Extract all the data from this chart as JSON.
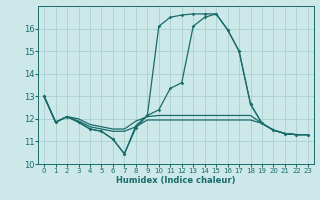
{
  "xlabel": "Humidex (Indice chaleur)",
  "xlim": [
    -0.5,
    23.5
  ],
  "ylim": [
    10,
    17
  ],
  "yticks": [
    10,
    11,
    12,
    13,
    14,
    15,
    16
  ],
  "xticks": [
    0,
    1,
    2,
    3,
    4,
    5,
    6,
    7,
    8,
    9,
    10,
    11,
    12,
    13,
    14,
    15,
    16,
    17,
    18,
    19,
    20,
    21,
    22,
    23
  ],
  "bg_color": "#cce8e8",
  "grid_color": "#aacfcf",
  "line_color": "#1a6b6b",
  "lines": [
    {
      "x": [
        0,
        1,
        2,
        3,
        4,
        5,
        6,
        7,
        8,
        9,
        10,
        11,
        12,
        13,
        14,
        15,
        16,
        17,
        18,
        19,
        20,
        21,
        22,
        23
      ],
      "y": [
        13,
        11.85,
        12.1,
        11.85,
        11.55,
        11.45,
        11.1,
        10.45,
        11.7,
        12.15,
        16.1,
        16.5,
        16.6,
        16.65,
        16.65,
        16.65,
        15.95,
        15.0,
        12.65,
        11.8,
        11.5,
        11.35,
        11.3,
        11.3
      ],
      "marker": true
    },
    {
      "x": [
        0,
        1,
        2,
        3,
        4,
        5,
        6,
        7,
        8,
        9,
        10,
        11,
        12,
        13,
        14,
        15,
        16,
        17,
        18,
        19,
        20,
        21,
        22,
        23
      ],
      "y": [
        13,
        11.85,
        12.1,
        12.0,
        11.75,
        11.65,
        11.55,
        11.55,
        11.9,
        12.1,
        12.15,
        12.15,
        12.15,
        12.15,
        12.15,
        12.15,
        12.15,
        12.15,
        12.15,
        11.8,
        11.5,
        11.35,
        11.3,
        11.3
      ],
      "marker": false
    },
    {
      "x": [
        0,
        1,
        2,
        3,
        4,
        5,
        6,
        7,
        8,
        9,
        10,
        11,
        12,
        13,
        14,
        15,
        16,
        17,
        18,
        19,
        20,
        21,
        22,
        23
      ],
      "y": [
        13,
        11.85,
        12.1,
        11.9,
        11.65,
        11.55,
        11.45,
        11.45,
        11.65,
        11.95,
        11.95,
        11.95,
        11.95,
        11.95,
        11.95,
        11.95,
        11.95,
        11.95,
        11.95,
        11.8,
        11.5,
        11.35,
        11.3,
        11.3
      ],
      "marker": false
    },
    {
      "x": [
        0,
        1,
        2,
        3,
        4,
        5,
        6,
        7,
        8,
        9,
        10,
        11,
        12,
        13,
        14,
        15,
        16,
        17,
        18,
        19,
        20,
        21,
        22,
        23
      ],
      "y": [
        13,
        11.85,
        12.1,
        11.85,
        11.55,
        11.45,
        11.1,
        10.45,
        11.6,
        12.15,
        12.4,
        13.35,
        13.6,
        16.1,
        16.5,
        16.65,
        15.95,
        15.0,
        12.65,
        11.8,
        11.5,
        11.35,
        11.3,
        11.3
      ],
      "marker": true
    }
  ]
}
